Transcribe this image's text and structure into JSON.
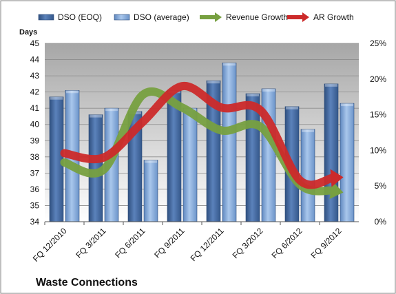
{
  "chart_data": {
    "type": "bar",
    "title": "Waste Connections",
    "ylabel_left": "Days",
    "ylim_left": [
      34,
      45
    ],
    "ylim_right": [
      0,
      25
    ],
    "y_ticks_left": [
      "34",
      "35",
      "36",
      "37",
      "38",
      "39",
      "40",
      "41",
      "42",
      "43",
      "44",
      "45"
    ],
    "y_ticks_right": [
      "0%",
      "5%",
      "10%",
      "15%",
      "20%",
      "25%"
    ],
    "categories": [
      "FQ 12/2010",
      "FQ 3/2011",
      "FQ 6/2011",
      "FQ 9/2011",
      "FQ 12/2011",
      "FQ 3/2012",
      "FQ 6/2012",
      "FQ 9/2012"
    ],
    "grid": true,
    "legend_position": "top",
    "series": [
      {
        "name": "DSO (EOQ)",
        "kind": "bar",
        "axis": "left",
        "color": "#4a6fa5",
        "values": [
          41.7,
          40.6,
          40.8,
          42.1,
          42.7,
          41.9,
          41.1,
          42.5
        ]
      },
      {
        "name": "DSO (average)",
        "kind": "bar",
        "axis": "left",
        "color": "#8db3e2",
        "values": [
          42.1,
          41.0,
          37.8,
          41.0,
          43.8,
          42.2,
          39.7,
          41.3
        ]
      },
      {
        "name": "Revenue Growth",
        "kind": "line",
        "axis": "right",
        "unit": "%",
        "color": "#77a040",
        "values": [
          8.3,
          7.3,
          17.8,
          16.0,
          12.8,
          13.3,
          5.2,
          4.2
        ]
      },
      {
        "name": "AR Growth",
        "kind": "line",
        "axis": "right",
        "unit": "%",
        "color": "#cc2a2a",
        "values": [
          9.6,
          9.0,
          14.0,
          19.0,
          16.0,
          15.6,
          5.8,
          6.2
        ]
      }
    ]
  }
}
